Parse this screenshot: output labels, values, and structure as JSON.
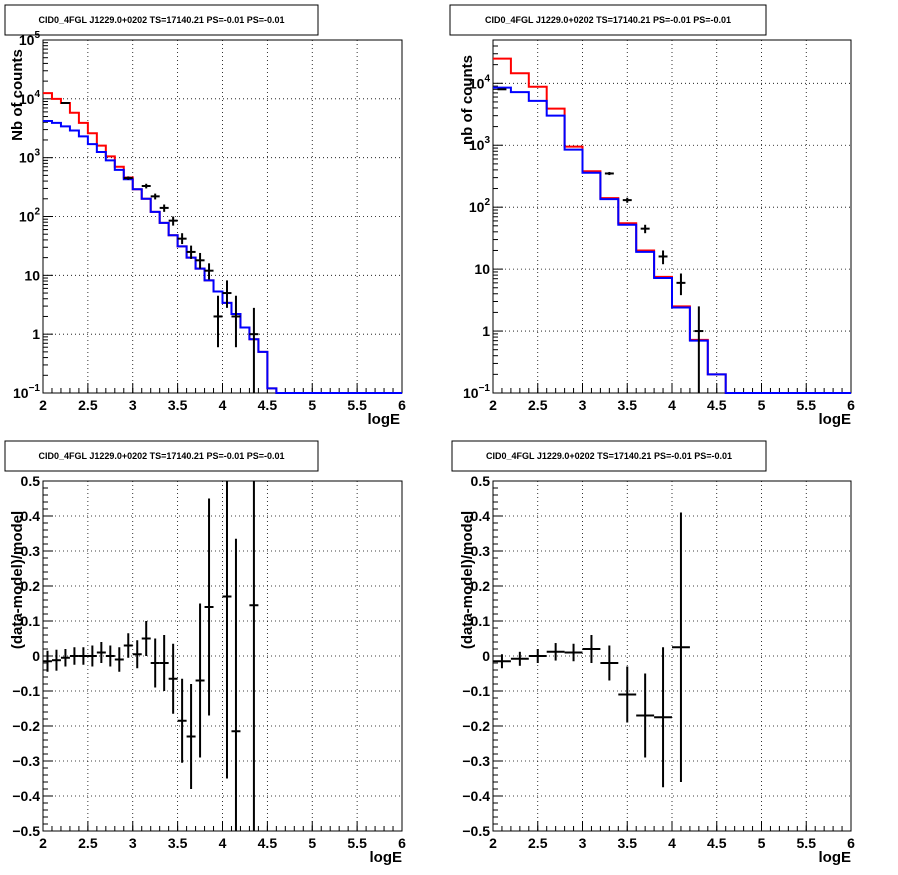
{
  "chart_data": [
    {
      "type": "line",
      "title": "CID0_4FGL J1229.0+0202 TS=17140.21 PS=-0.01 PS=-0.01",
      "xlabel": "logE",
      "ylabel": "Nb of counts",
      "xlim": [
        2,
        6
      ],
      "ylim": [
        0.1,
        100000
      ],
      "yscale": "log",
      "grid": true,
      "xticks": [
        "2",
        "2.5",
        "3",
        "3.5",
        "4",
        "4.5",
        "5",
        "5.5",
        "6"
      ],
      "yticks": [
        {
          "value": 0.1,
          "base": "10",
          "exp": "−1"
        },
        {
          "value": 1,
          "label": "1"
        },
        {
          "value": 10,
          "label": "10"
        },
        {
          "value": 100,
          "base": "10",
          "exp": "2"
        },
        {
          "value": 1000,
          "base": "10",
          "exp": "3"
        },
        {
          "value": 10000,
          "base": "10",
          "exp": "4"
        },
        {
          "value": 100000,
          "base": "10",
          "exp": "5"
        }
      ],
      "bin_edges": [
        2,
        2.1,
        2.2,
        2.3,
        2.4,
        2.5,
        2.6,
        2.7,
        2.8,
        2.9,
        3,
        3.1,
        3.2,
        3.3,
        3.4,
        3.5,
        3.6,
        3.7,
        3.8,
        3.9,
        4,
        4.1,
        4.2,
        4.3,
        4.4,
        4.5,
        4.6,
        4.7,
        4.8,
        4.9,
        5,
        5.1,
        5.2,
        5.3,
        5.4,
        5.5,
        5.6,
        5.7,
        5.8,
        5.9,
        6
      ],
      "series": [
        {
          "color": "#ff0000",
          "style": "step",
          "values": [
            12500,
            10000,
            8500,
            5800,
            3900,
            2600,
            1600,
            1050,
            700,
            460,
            290,
            200,
            120,
            78,
            48,
            31,
            20,
            13,
            8.2,
            5.3,
            3.4,
            2.2,
            1.3,
            0.82,
            0.5,
            0.12,
            0.1,
            0.1,
            0.1,
            0.1,
            0.1,
            0.1,
            0.1,
            0.1,
            0.1,
            0.1,
            0.1,
            0.1,
            0.1,
            0.1
          ]
        },
        {
          "color": "#0000ff",
          "style": "step",
          "values": [
            4200,
            3900,
            3400,
            2900,
            2300,
            1700,
            1250,
            900,
            620,
            430,
            290,
            200,
            120,
            78,
            48,
            31,
            20,
            13,
            8.2,
            5.3,
            3.4,
            2.2,
            1.3,
            0.82,
            0.5,
            0.12,
            0.1,
            0.1,
            0.1,
            0.1,
            0.1,
            0.1,
            0.1,
            0.1,
            0.1,
            0.1,
            0.1,
            0.1,
            0.1,
            0.1
          ]
        },
        {
          "color": "#000000",
          "style": "errorbar",
          "points": [
            {
              "x": 2.25,
              "y": 8500,
              "ylo": 8300,
              "yhi": 8700
            },
            {
              "x": 2.95,
              "y": 450,
              "ylo": 420,
              "yhi": 480
            },
            {
              "x": 3.15,
              "y": 330,
              "ylo": 300,
              "yhi": 360
            },
            {
              "x": 3.25,
              "y": 220,
              "ylo": 195,
              "yhi": 245
            },
            {
              "x": 3.35,
              "y": 140,
              "ylo": 120,
              "yhi": 160
            },
            {
              "x": 3.45,
              "y": 85,
              "ylo": 70,
              "yhi": 100
            },
            {
              "x": 3.55,
              "y": 42,
              "ylo": 34,
              "yhi": 52
            },
            {
              "x": 3.65,
              "y": 25,
              "ylo": 19,
              "yhi": 32
            },
            {
              "x": 3.75,
              "y": 18,
              "ylo": 13,
              "yhi": 24
            },
            {
              "x": 3.85,
              "y": 12,
              "ylo": 8.5,
              "yhi": 16
            },
            {
              "x": 3.95,
              "y": 2.0,
              "ylo": 0.6,
              "yhi": 4.5
            },
            {
              "x": 4.05,
              "y": 5.0,
              "ylo": 2.8,
              "yhi": 8.2
            },
            {
              "x": 4.15,
              "y": 2.0,
              "ylo": 0.6,
              "yhi": 4.5
            },
            {
              "x": 4.35,
              "y": 1.0,
              "ylo": 0.1,
              "yhi": 2.8
            }
          ]
        }
      ]
    },
    {
      "type": "line",
      "title": "CID0_4FGL J1229.0+0202 TS=17140.21 PS=-0.01 PS=-0.01",
      "xlabel": "logE",
      "ylabel": "nb of counts",
      "xlim": [
        2,
        6
      ],
      "ylim": [
        0.1,
        50000
      ],
      "yscale": "log",
      "grid": true,
      "xticks": [
        "2",
        "2.5",
        "3",
        "3.5",
        "4",
        "4.5",
        "5",
        "5.5",
        "6"
      ],
      "yticks": [
        {
          "value": 0.1,
          "base": "10",
          "exp": "−1"
        },
        {
          "value": 1,
          "label": "1"
        },
        {
          "value": 10,
          "label": "10"
        },
        {
          "value": 100,
          "base": "10",
          "exp": "2"
        },
        {
          "value": 1000,
          "base": "10",
          "exp": "3"
        },
        {
          "value": 10000,
          "base": "10",
          "exp": "4"
        }
      ],
      "bin_edges": [
        2,
        2.2,
        2.4,
        2.6,
        2.8,
        3,
        3.2,
        3.4,
        3.6,
        3.8,
        4,
        4.2,
        4.4,
        4.6,
        4.8,
        5,
        5.2,
        5.4,
        5.6,
        5.8,
        6
      ],
      "series": [
        {
          "color": "#ff0000",
          "style": "step",
          "values": [
            25000,
            14500,
            8800,
            3900,
            950,
            380,
            140,
            55,
            20,
            7.5,
            2.5,
            0.72,
            0.2,
            0.1,
            0.1,
            0.1,
            0.1,
            0.1,
            0.1,
            0.1
          ]
        },
        {
          "color": "#0000ff",
          "style": "step",
          "values": [
            8500,
            7200,
            5200,
            3000,
            850,
            360,
            135,
            52,
            19,
            7.2,
            2.4,
            0.7,
            0.2,
            0.1,
            0.1,
            0.1,
            0.1,
            0.1,
            0.1,
            0.1
          ]
        },
        {
          "color": "#000000",
          "style": "errorbar",
          "points": [
            {
              "x": 2.1,
              "y": 8000,
              "ylo": 7800,
              "yhi": 8200
            },
            {
              "x": 3.3,
              "y": 350,
              "ylo": 330,
              "yhi": 370
            },
            {
              "x": 3.5,
              "y": 130,
              "ylo": 118,
              "yhi": 142
            },
            {
              "x": 3.7,
              "y": 45,
              "ylo": 38,
              "yhi": 52
            },
            {
              "x": 3.9,
              "y": 16,
              "ylo": 12,
              "yhi": 20
            },
            {
              "x": 4.1,
              "y": 6.0,
              "ylo": 3.8,
              "yhi": 8.5
            },
            {
              "x": 4.3,
              "y": 1.0,
              "ylo": 0.1,
              "yhi": 2.5
            }
          ]
        }
      ]
    },
    {
      "type": "scatter",
      "title": "CID0_4FGL J1229.0+0202 TS=17140.21 PS=-0.01 PS=-0.01",
      "xlabel": "logE",
      "ylabel": "(data-model)/model",
      "xlim": [
        2,
        6
      ],
      "ylim": [
        -0.5,
        0.5
      ],
      "grid": true,
      "xticks": [
        "2",
        "2.5",
        "3",
        "3.5",
        "4",
        "4.5",
        "5",
        "5.5",
        "6"
      ],
      "yticks": [
        "-0.5",
        "-0.4",
        "-0.3",
        "-0.2",
        "-0.1",
        "0",
        "0.1",
        "0.2",
        "0.3",
        "0.4",
        "0.5"
      ],
      "xerr": 0.05,
      "series": [
        {
          "color": "#000000",
          "style": "errorbar",
          "points": [
            {
              "x": 2.05,
              "y": -0.015,
              "err": 0.03
            },
            {
              "x": 2.15,
              "y": -0.012,
              "err": 0.03
            },
            {
              "x": 2.25,
              "y": -0.005,
              "err": 0.025
            },
            {
              "x": 2.35,
              "y": 0.0,
              "err": 0.025
            },
            {
              "x": 2.45,
              "y": 0.0,
              "err": 0.025
            },
            {
              "x": 2.55,
              "y": 0.0,
              "err": 0.03
            },
            {
              "x": 2.65,
              "y": 0.01,
              "err": 0.03
            },
            {
              "x": 2.75,
              "y": 0.0,
              "err": 0.03
            },
            {
              "x": 2.85,
              "y": -0.01,
              "err": 0.035
            },
            {
              "x": 2.95,
              "y": 0.03,
              "err": 0.035
            },
            {
              "x": 3.05,
              "y": 0.005,
              "err": 0.04
            },
            {
              "x": 3.15,
              "y": 0.05,
              "err": 0.05
            },
            {
              "x": 3.25,
              "y": -0.02,
              "err": 0.07
            },
            {
              "x": 3.35,
              "y": -0.02,
              "err": 0.08
            },
            {
              "x": 3.45,
              "y": -0.065,
              "err": 0.1
            },
            {
              "x": 3.55,
              "y": -0.185,
              "err": 0.12
            },
            {
              "x": 3.65,
              "y": -0.23,
              "err": 0.15
            },
            {
              "x": 3.75,
              "y": -0.07,
              "err": 0.22
            },
            {
              "x": 3.85,
              "y": 0.14,
              "err": 0.31
            },
            {
              "x": 4.05,
              "y": 0.17,
              "err": 0.52
            },
            {
              "x": 4.15,
              "y": -0.215,
              "err": 0.55
            },
            {
              "x": 4.35,
              "y": 0.145,
              "err": 0.9
            }
          ]
        }
      ]
    },
    {
      "type": "scatter",
      "title": "CID0_4FGL J1229.0+0202 TS=17140.21 PS=-0.01 PS=-0.01",
      "xlabel": "logE",
      "ylabel": "(data-model)/model",
      "xlim": [
        2,
        6
      ],
      "ylim": [
        -0.5,
        0.5
      ],
      "grid": true,
      "xticks": [
        "2",
        "2.5",
        "3",
        "3.5",
        "4",
        "4.5",
        "5",
        "5.5",
        "6"
      ],
      "yticks": [
        "-0.5",
        "-0.4",
        "-0.3",
        "-0.2",
        "-0.1",
        "0",
        "0.1",
        "0.2",
        "0.3",
        "0.4",
        "0.5"
      ],
      "xerr": 0.1,
      "series": [
        {
          "color": "#000000",
          "style": "errorbar",
          "points": [
            {
              "x": 2.1,
              "y": -0.015,
              "err": 0.02
            },
            {
              "x": 2.3,
              "y": -0.008,
              "err": 0.02
            },
            {
              "x": 2.5,
              "y": 0.0,
              "err": 0.02
            },
            {
              "x": 2.7,
              "y": 0.012,
              "err": 0.025
            },
            {
              "x": 2.9,
              "y": 0.01,
              "err": 0.025
            },
            {
              "x": 3.1,
              "y": 0.02,
              "err": 0.04
            },
            {
              "x": 3.3,
              "y": -0.02,
              "err": 0.05
            },
            {
              "x": 3.5,
              "y": -0.11,
              "err": 0.08
            },
            {
              "x": 3.7,
              "y": -0.17,
              "err": 0.12
            },
            {
              "x": 3.9,
              "y": -0.175,
              "err": 0.2
            },
            {
              "x": 4.1,
              "y": 0.025,
              "err": 0.385
            }
          ]
        }
      ]
    }
  ]
}
